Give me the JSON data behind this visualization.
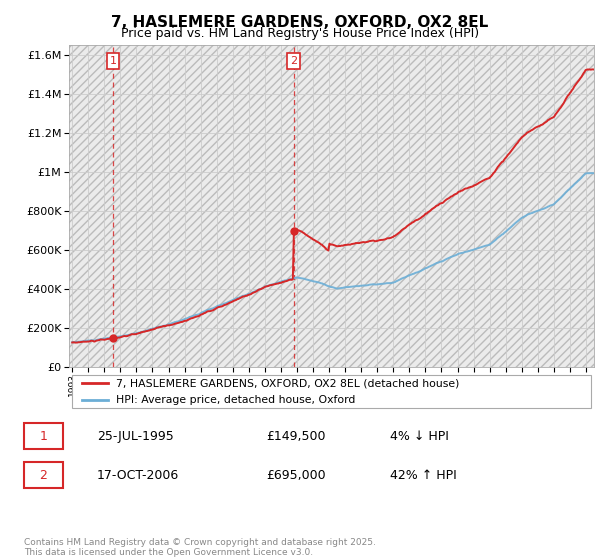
{
  "title": "7, HASLEMERE GARDENS, OXFORD, OX2 8EL",
  "subtitle": "Price paid vs. HM Land Registry's House Price Index (HPI)",
  "title_fontsize": 11,
  "subtitle_fontsize": 9,
  "ylim": [
    0,
    1650000
  ],
  "xlim_start": 1992.8,
  "xlim_end": 2025.5,
  "hpi_color": "#6baed6",
  "property_color": "#d62728",
  "sale1_year": 1995.55,
  "sale1_price": 149500,
  "sale2_year": 2006.8,
  "sale2_price": 695000,
  "legend_line1": "7, HASLEMERE GARDENS, OXFORD, OX2 8EL (detached house)",
  "legend_line2": "HPI: Average price, detached house, Oxford",
  "table_row1_num": "1",
  "table_row1_date": "25-JUL-1995",
  "table_row1_price": "£149,500",
  "table_row1_hpi": "4% ↓ HPI",
  "table_row2_num": "2",
  "table_row2_date": "17-OCT-2006",
  "table_row2_price": "£695,000",
  "table_row2_hpi": "42% ↑ HPI",
  "footer": "Contains HM Land Registry data © Crown copyright and database right 2025.\nThis data is licensed under the Open Government Licence v3.0.",
  "background_color": "#ffffff",
  "grid_color": "#cccccc",
  "hatch_bg_color": "#e8e8e8"
}
